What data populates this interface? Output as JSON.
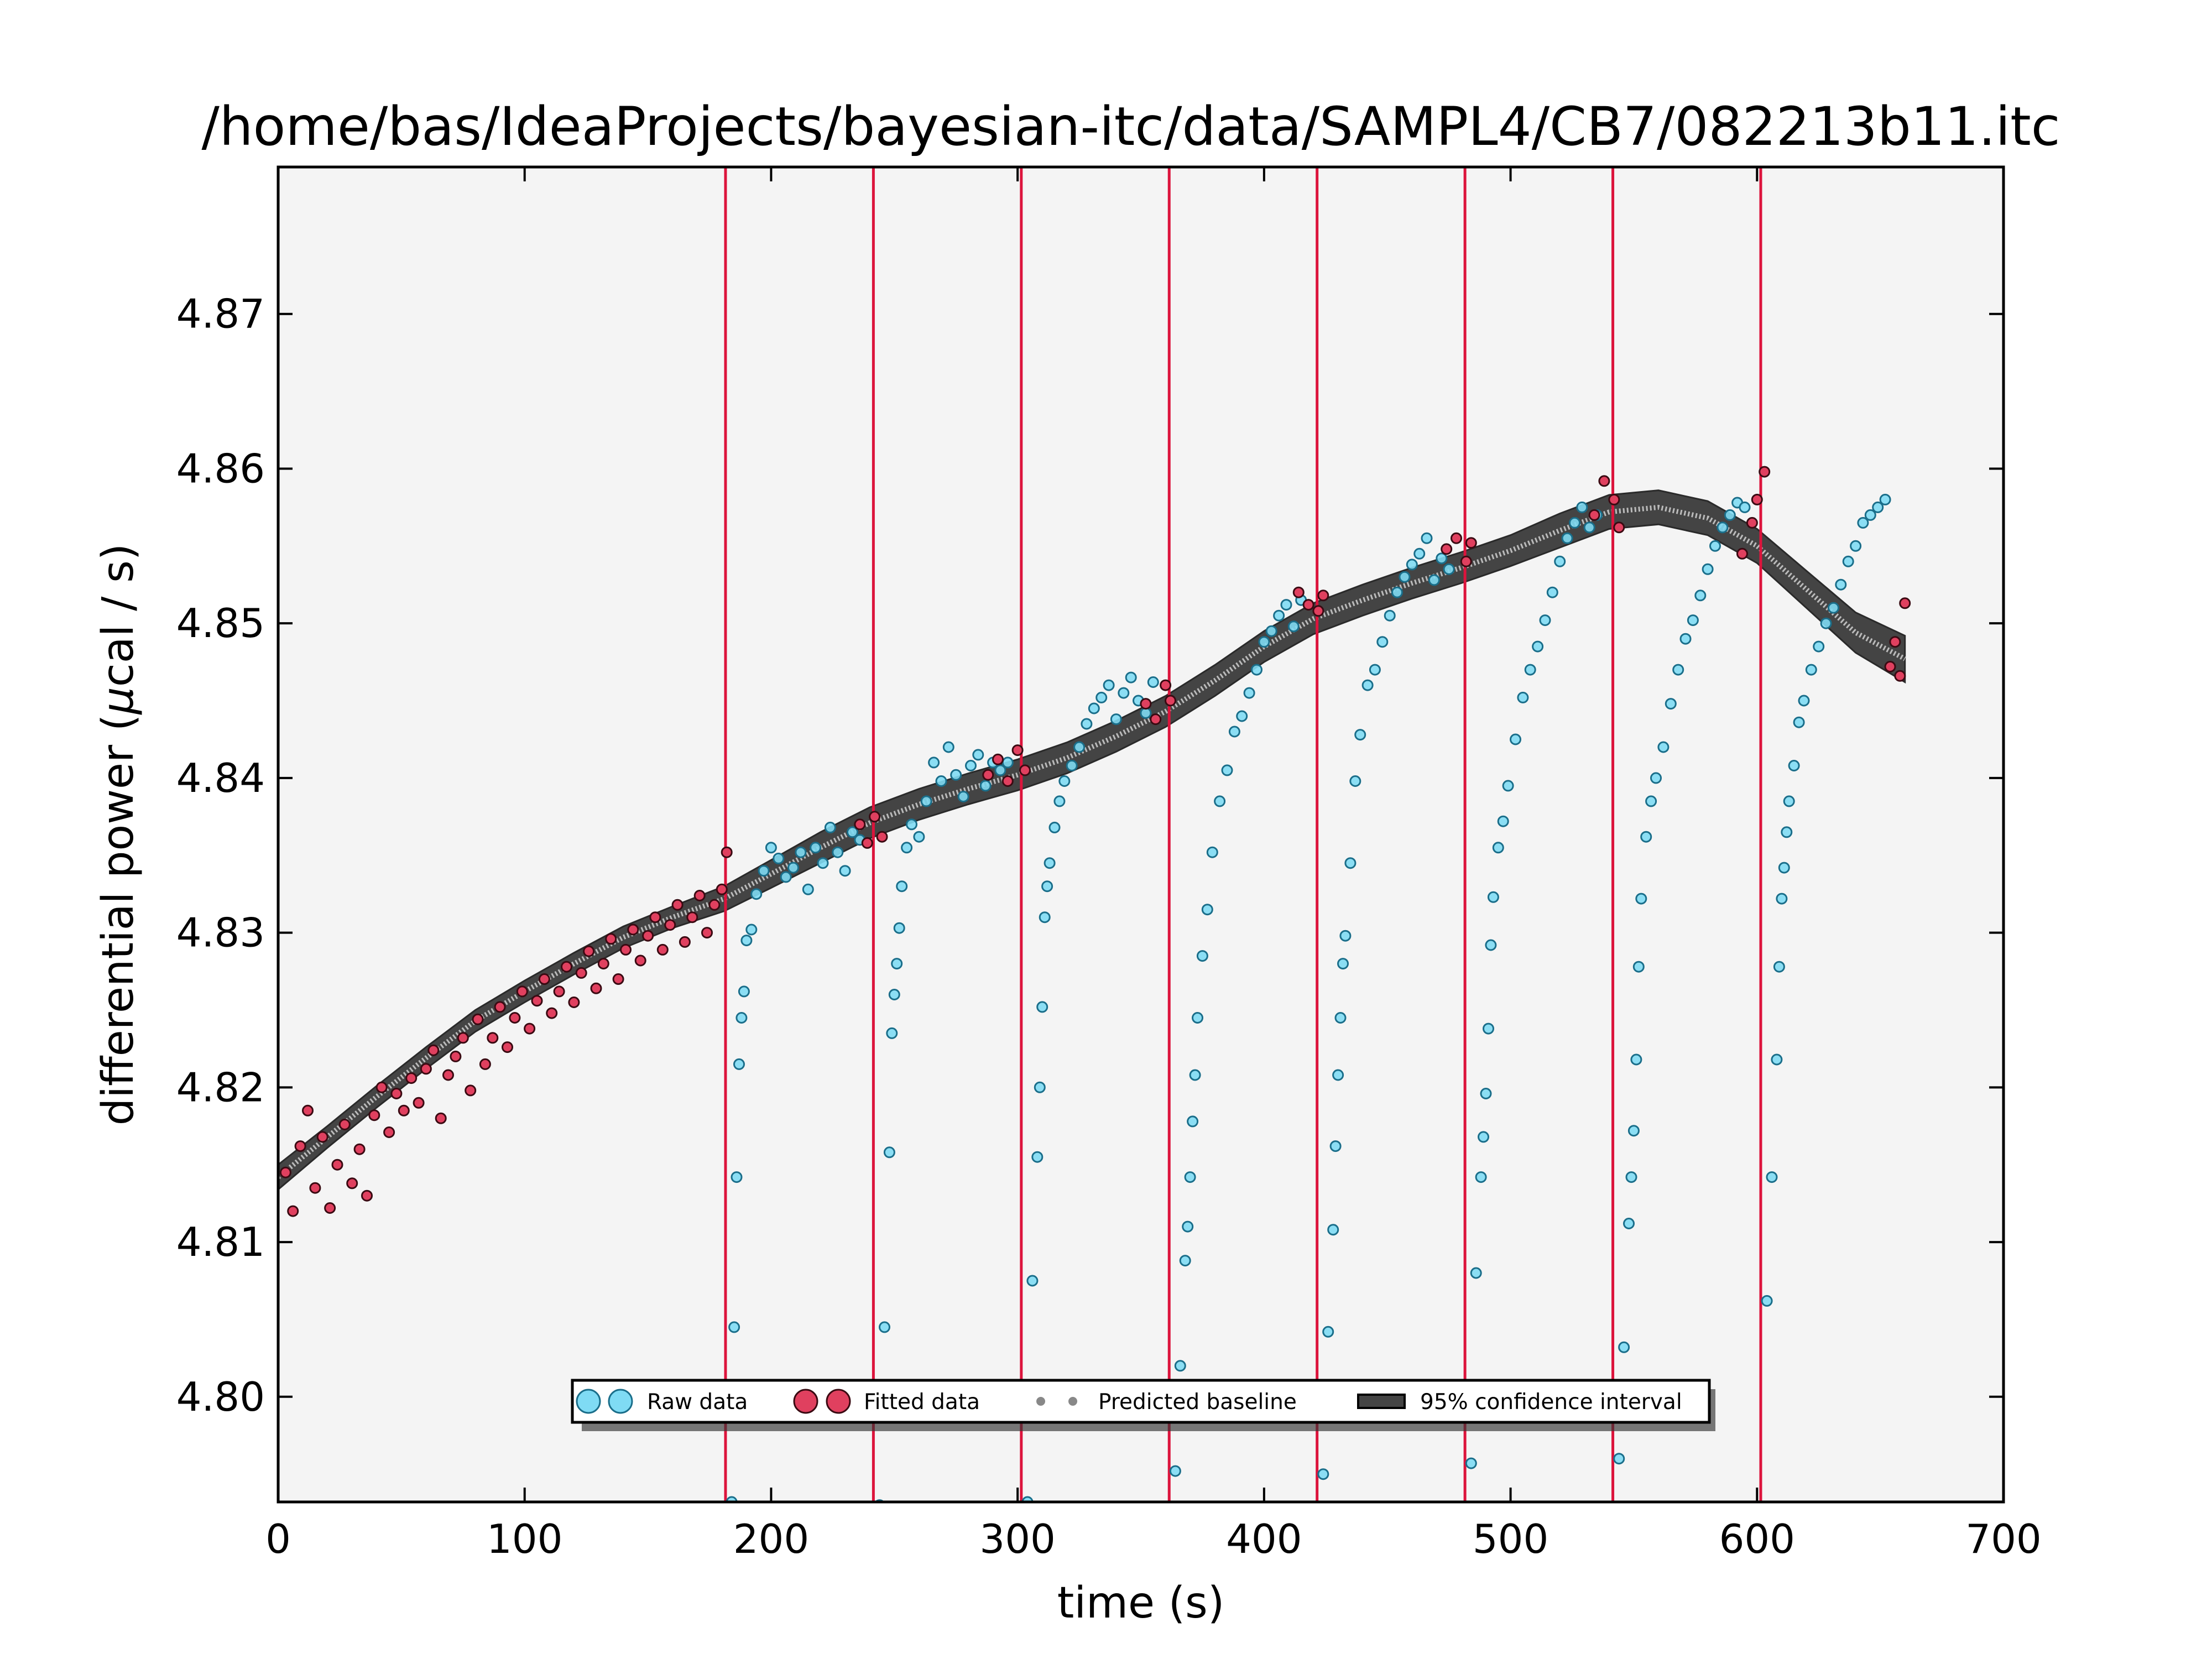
{
  "chart_data": {
    "type": "scatter",
    "title": "/home/bas/IdeaProjects/bayesian-itc/data/SAMPL4/CB7/082213b11.itc",
    "xlabel": "time (s)",
    "ylabel_prefix": "differential power (",
    "ylabel_mu": "μ",
    "ylabel_suffix": "cal / s)",
    "xlim": [
      0,
      700
    ],
    "ylim": [
      4.7932,
      4.8795
    ],
    "x_ticks": [
      0,
      100,
      200,
      300,
      400,
      500,
      600,
      700
    ],
    "x_tick_labels": [
      "0",
      "100",
      "200",
      "300",
      "400",
      "500",
      "600",
      "700"
    ],
    "y_ticks": [
      4.8,
      4.81,
      4.82,
      4.83,
      4.84,
      4.85,
      4.86,
      4.87
    ],
    "y_tick_labels": [
      "4.80",
      "4.81",
      "4.82",
      "4.83",
      "4.84",
      "4.85",
      "4.86",
      "4.87"
    ],
    "grid": false,
    "background_color": "#f4f4f4",
    "injection_lines": {
      "color": "#dc143c",
      "x": [
        181.5,
        241.5,
        301.5,
        361.5,
        421.5,
        481.5,
        541.5,
        601.5
      ]
    },
    "legend": {
      "placement": "bottom-center",
      "entries": [
        {
          "key": "raw",
          "label": "Raw data"
        },
        {
          "key": "fitted",
          "label": "Fitted data"
        },
        {
          "key": "baseline",
          "label": "Predicted baseline"
        },
        {
          "key": "ci",
          "label": "95% confidence interval"
        }
      ]
    },
    "colors": {
      "raw": "#7fdbf4",
      "raw_edge": "#1a6e8a",
      "fitted": "#e0405f",
      "fitted_edge": "#3a0a12",
      "band": "#444444",
      "baseline": "#bbbbbb"
    },
    "baseline": {
      "x": [
        0,
        20,
        40,
        60,
        80,
        100,
        120,
        140,
        160,
        181,
        200,
        220,
        240,
        260,
        280,
        300,
        320,
        340,
        360,
        380,
        400,
        420,
        440,
        460,
        480,
        500,
        520,
        540,
        560,
        580,
        600,
        620,
        640,
        660
      ],
      "y": [
        4.8142,
        4.8168,
        4.8194,
        4.8219,
        4.8243,
        4.8262,
        4.828,
        4.8297,
        4.831,
        4.8322,
        4.8338,
        4.8355,
        4.8371,
        4.8383,
        4.8393,
        4.8402,
        4.8413,
        4.8427,
        4.8443,
        4.8463,
        4.8485,
        4.8503,
        4.8515,
        4.8526,
        4.8536,
        4.8547,
        4.856,
        4.8572,
        4.8575,
        4.8568,
        4.855,
        4.8522,
        4.8494,
        4.8477
      ],
      "ci_halfwidth": [
        0.0008,
        0.0007,
        0.0007,
        0.0007,
        0.0007,
        0.0007,
        0.0007,
        0.0007,
        0.0007,
        0.0008,
        0.0009,
        0.001,
        0.001,
        0.001,
        0.001,
        0.001,
        0.001,
        0.001,
        0.001,
        0.001,
        0.001,
        0.001,
        0.001,
        0.001,
        0.001,
        0.001,
        0.0011,
        0.0011,
        0.0011,
        0.0011,
        0.0011,
        0.0012,
        0.0013,
        0.0015
      ]
    },
    "fitted_data": {
      "x": [
        3,
        6,
        9,
        12,
        15,
        18,
        21,
        24,
        27,
        30,
        33,
        36,
        39,
        42,
        45,
        48,
        51,
        54,
        57,
        60,
        63,
        66,
        69,
        72,
        75,
        78,
        81,
        84,
        87,
        90,
        93,
        96,
        99,
        102,
        105,
        108,
        111,
        114,
        117,
        120,
        123,
        126,
        129,
        132,
        135,
        138,
        141,
        144,
        147,
        150,
        153,
        156,
        159,
        162,
        165,
        168,
        171,
        174,
        177,
        180,
        182,
        236,
        239,
        242,
        245,
        288,
        292,
        296,
        300,
        303,
        352,
        356,
        360,
        362,
        414,
        418,
        422,
        424,
        474,
        478,
        482,
        484,
        534,
        538,
        542,
        544,
        594,
        598,
        600,
        603,
        654,
        656,
        658,
        660
      ],
      "y": [
        4.8145,
        4.812,
        4.8162,
        4.8185,
        4.8135,
        4.8168,
        4.8122,
        4.815,
        4.8176,
        4.8138,
        4.816,
        4.813,
        4.8182,
        4.82,
        4.8171,
        4.8196,
        4.8185,
        4.8206,
        4.819,
        4.8212,
        4.8224,
        4.818,
        4.8208,
        4.822,
        4.8232,
        4.8198,
        4.8244,
        4.8215,
        4.8232,
        4.8252,
        4.8226,
        4.8245,
        4.8262,
        4.8238,
        4.8256,
        4.827,
        4.8248,
        4.8262,
        4.8278,
        4.8255,
        4.8274,
        4.8288,
        4.8264,
        4.828,
        4.8296,
        4.827,
        4.8289,
        4.8302,
        4.8282,
        4.8298,
        4.831,
        4.8289,
        4.8305,
        4.8318,
        4.8294,
        4.831,
        4.8324,
        4.83,
        4.8318,
        4.8328,
        4.8352,
        4.837,
        4.8358,
        4.8375,
        4.8362,
        4.8402,
        4.8412,
        4.8398,
        4.8418,
        4.8405,
        4.8448,
        4.8438,
        4.846,
        4.845,
        4.852,
        4.8512,
        4.8508,
        4.8518,
        4.8548,
        4.8555,
        4.854,
        4.8552,
        4.857,
        4.8592,
        4.858,
        4.8562,
        4.8545,
        4.8565,
        4.858,
        4.8598,
        4.8472,
        4.8488,
        4.8466,
        4.8513
      ]
    },
    "raw_data": {
      "x": [
        184,
        185,
        186,
        187,
        188,
        189,
        190,
        192,
        194,
        197,
        200,
        203,
        206,
        209,
        212,
        215,
        218,
        221,
        224,
        227,
        230,
        233,
        236,
        244,
        246,
        248,
        249,
        250,
        251,
        252,
        253,
        255,
        257,
        260,
        263,
        266,
        269,
        272,
        275,
        278,
        281,
        284,
        287,
        290,
        293,
        296,
        304,
        306,
        308,
        309,
        310,
        311,
        312,
        313,
        315,
        317,
        319,
        322,
        325,
        328,
        331,
        334,
        337,
        340,
        343,
        346,
        349,
        352,
        355,
        364,
        366,
        368,
        369,
        370,
        371,
        372,
        373,
        375,
        377,
        379,
        382,
        385,
        388,
        391,
        394,
        397,
        400,
        403,
        406,
        409,
        412,
        415,
        424,
        426,
        428,
        429,
        430,
        431,
        432,
        433,
        435,
        437,
        439,
        442,
        445,
        448,
        451,
        454,
        457,
        460,
        463,
        466,
        469,
        472,
        475,
        484,
        486,
        488,
        489,
        490,
        491,
        492,
        493,
        495,
        497,
        499,
        502,
        505,
        508,
        511,
        514,
        517,
        520,
        523,
        526,
        529,
        532,
        535,
        544,
        546,
        548,
        549,
        550,
        551,
        552,
        553,
        555,
        557,
        559,
        562,
        565,
        568,
        571,
        574,
        577,
        580,
        583,
        586,
        589,
        592,
        595,
        604,
        606,
        608,
        609,
        610,
        611,
        612,
        613,
        615,
        617,
        619,
        622,
        625,
        628,
        631,
        634,
        637,
        640,
        643,
        646,
        649,
        652
      ],
      "y": [
        4.7932,
        4.8045,
        4.8142,
        4.8215,
        4.8245,
        4.8262,
        4.8295,
        4.8302,
        4.8325,
        4.834,
        4.8355,
        4.8348,
        4.8336,
        4.8342,
        4.8352,
        4.8328,
        4.8355,
        4.8345,
        4.8368,
        4.8352,
        4.834,
        4.8365,
        4.836,
        4.793,
        4.8045,
        4.8158,
        4.8235,
        4.826,
        4.828,
        4.8303,
        4.833,
        4.8355,
        4.837,
        4.8362,
        4.8385,
        4.841,
        4.8398,
        4.842,
        4.8402,
        4.8388,
        4.8408,
        4.8415,
        4.8395,
        4.841,
        4.8405,
        4.841,
        4.7932,
        4.8075,
        4.8155,
        4.82,
        4.8252,
        4.831,
        4.833,
        4.8345,
        4.8368,
        4.8385,
        4.8398,
        4.8408,
        4.842,
        4.8435,
        4.8445,
        4.8452,
        4.846,
        4.8438,
        4.8455,
        4.8465,
        4.845,
        4.8442,
        4.8462,
        4.7952,
        4.802,
        4.8088,
        4.811,
        4.8142,
        4.8178,
        4.8208,
        4.8245,
        4.8285,
        4.8315,
        4.8352,
        4.8385,
        4.8405,
        4.843,
        4.844,
        4.8455,
        4.847,
        4.8488,
        4.8495,
        4.8505,
        4.8512,
        4.8498,
        4.8515,
        4.795,
        4.8042,
        4.8108,
        4.8162,
        4.8208,
        4.8245,
        4.828,
        4.8298,
        4.8345,
        4.8398,
        4.8428,
        4.846,
        4.847,
        4.8488,
        4.8505,
        4.852,
        4.853,
        4.8538,
        4.8545,
        4.8555,
        4.8528,
        4.8542,
        4.8535,
        4.7957,
        4.808,
        4.8142,
        4.8168,
        4.8196,
        4.8238,
        4.8292,
        4.8323,
        4.8355,
        4.8372,
        4.8395,
        4.8425,
        4.8452,
        4.847,
        4.8485,
        4.8502,
        4.852,
        4.854,
        4.8555,
        4.8565,
        4.8575,
        4.8562,
        4.857,
        4.796,
        4.8032,
        4.8112,
        4.8142,
        4.8172,
        4.8218,
        4.8278,
        4.8322,
        4.8362,
        4.8385,
        4.84,
        4.842,
        4.8448,
        4.847,
        4.849,
        4.8502,
        4.8518,
        4.8535,
        4.855,
        4.8562,
        4.857,
        4.8578,
        4.8575,
        4.8062,
        4.8142,
        4.8218,
        4.8278,
        4.8322,
        4.8342,
        4.8365,
        4.8385,
        4.8408,
        4.8436,
        4.845,
        4.847,
        4.8485,
        4.85,
        4.851,
        4.8525,
        4.854,
        4.855,
        4.8565,
        4.857,
        4.8575,
        4.858
      ]
    }
  }
}
